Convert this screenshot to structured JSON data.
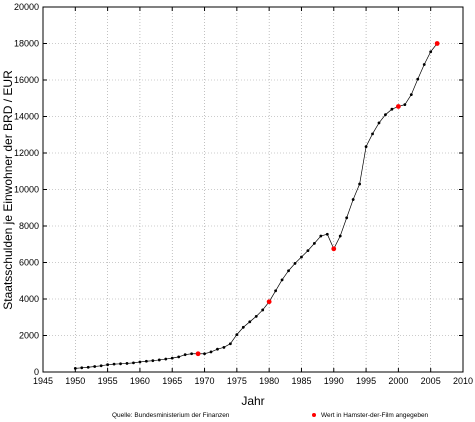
{
  "chart_data": {
    "type": "line",
    "xlabel": "Jahr",
    "ylabel": "Staatsschulden je Einwohner der BRD / EUR",
    "xlim": [
      1945,
      2010
    ],
    "ylim": [
      0,
      20000
    ],
    "x_ticks": [
      1945,
      1950,
      1955,
      1960,
      1965,
      1970,
      1975,
      1980,
      1985,
      1990,
      1995,
      2000,
      2005,
      2010
    ],
    "y_ticks": [
      0,
      2000,
      4000,
      6000,
      8000,
      10000,
      12000,
      14000,
      16000,
      18000,
      20000
    ],
    "grid": true,
    "series": [
      {
        "color": "#000000",
        "x": [
          1950,
          1951,
          1952,
          1953,
          1954,
          1955,
          1956,
          1957,
          1958,
          1959,
          1960,
          1961,
          1962,
          1963,
          1964,
          1965,
          1966,
          1967,
          1968,
          1969,
          1970,
          1971,
          1972,
          1973,
          1974,
          1975,
          1976,
          1977,
          1978,
          1979,
          1980,
          1981,
          1982,
          1983,
          1984,
          1985,
          1986,
          1987,
          1988,
          1989,
          1990,
          1991,
          1992,
          1993,
          1994,
          1995,
          1996,
          1997,
          1998,
          1999,
          2000,
          2001,
          2002,
          2003,
          2004,
          2005,
          2006
        ],
        "y": [
          200,
          230,
          260,
          300,
          340,
          400,
          430,
          450,
          470,
          500,
          550,
          590,
          620,
          660,
          710,
          760,
          830,
          950,
          1000,
          1000,
          1000,
          1100,
          1250,
          1350,
          1550,
          2050,
          2450,
          2750,
          3050,
          3400,
          3850,
          4450,
          5050,
          5550,
          5950,
          6300,
          6650,
          7050,
          7450,
          7550,
          6750,
          7450,
          8450,
          9450,
          10300,
          12350,
          13050,
          13650,
          14100,
          14400,
          14550,
          14650,
          15200,
          16050,
          16850,
          17550,
          18000
        ]
      }
    ],
    "highlighted_points": {
      "color": "#ff0000",
      "x": [
        1969,
        1980,
        1990,
        2000,
        2006
      ],
      "y": [
        1000,
        3850,
        6750,
        14550,
        18000
      ]
    }
  },
  "footer": {
    "source": "Quelle: Bundesministerium der Finanzen",
    "legend_label": "Wert in Hamster-der-Film angegeben"
  }
}
